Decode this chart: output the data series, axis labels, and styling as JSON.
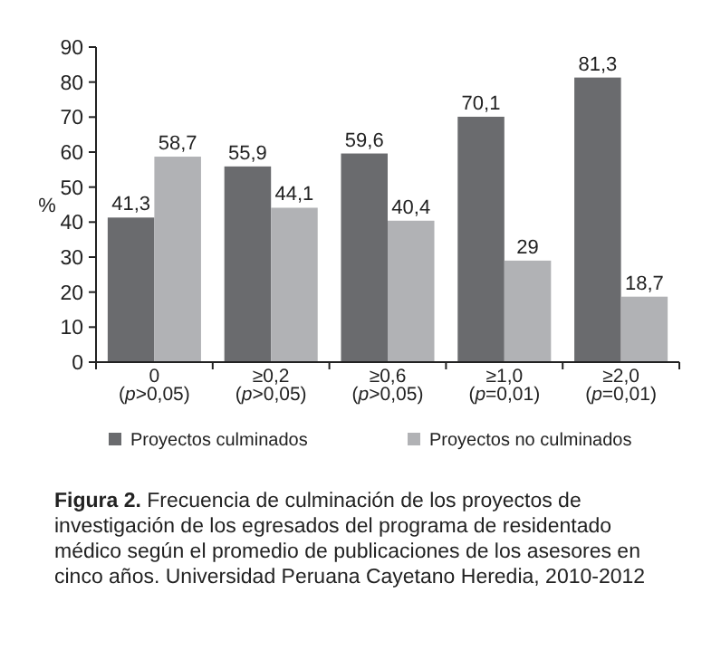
{
  "chart_data": {
    "type": "bar",
    "ylabel": "%",
    "categories": [
      "0\n(p>0,05)",
      "≥0,2\n(p>0,05)",
      "≥0,6\n(p>0,05)",
      "≥1,0\n(p=0,01)",
      "≥2,0\n(p=0,01)"
    ],
    "series": [
      {
        "name": "Proyectos culminados",
        "color": "#6a6b6e",
        "values": [
          41.3,
          55.9,
          59.6,
          70.1,
          81.3
        ],
        "value_labels": [
          "41,3",
          "55,9",
          "59,6",
          "70,1",
          "81,3"
        ]
      },
      {
        "name": "Proyectos no culminados",
        "color": "#b1b2b5",
        "values": [
          58.7,
          44.1,
          40.4,
          29,
          18.7
        ],
        "value_labels": [
          "58,7",
          "44,1",
          "40,4",
          "29",
          "18,7"
        ]
      }
    ],
    "ylim": [
      0,
      90
    ],
    "yticks": [
      0,
      10,
      20,
      30,
      40,
      50,
      60,
      70,
      80,
      90
    ],
    "legend": "bottom",
    "grid": false,
    "annotations": [
      "Figura 2. Frecuencia de culminación de los proyectos de investigación de los egresados del programa de residentado médico según el promedio de publicaciones de los asesores en cinco años. Universidad Peruana Cayetano Heredia, 2010-2012"
    ]
  }
}
